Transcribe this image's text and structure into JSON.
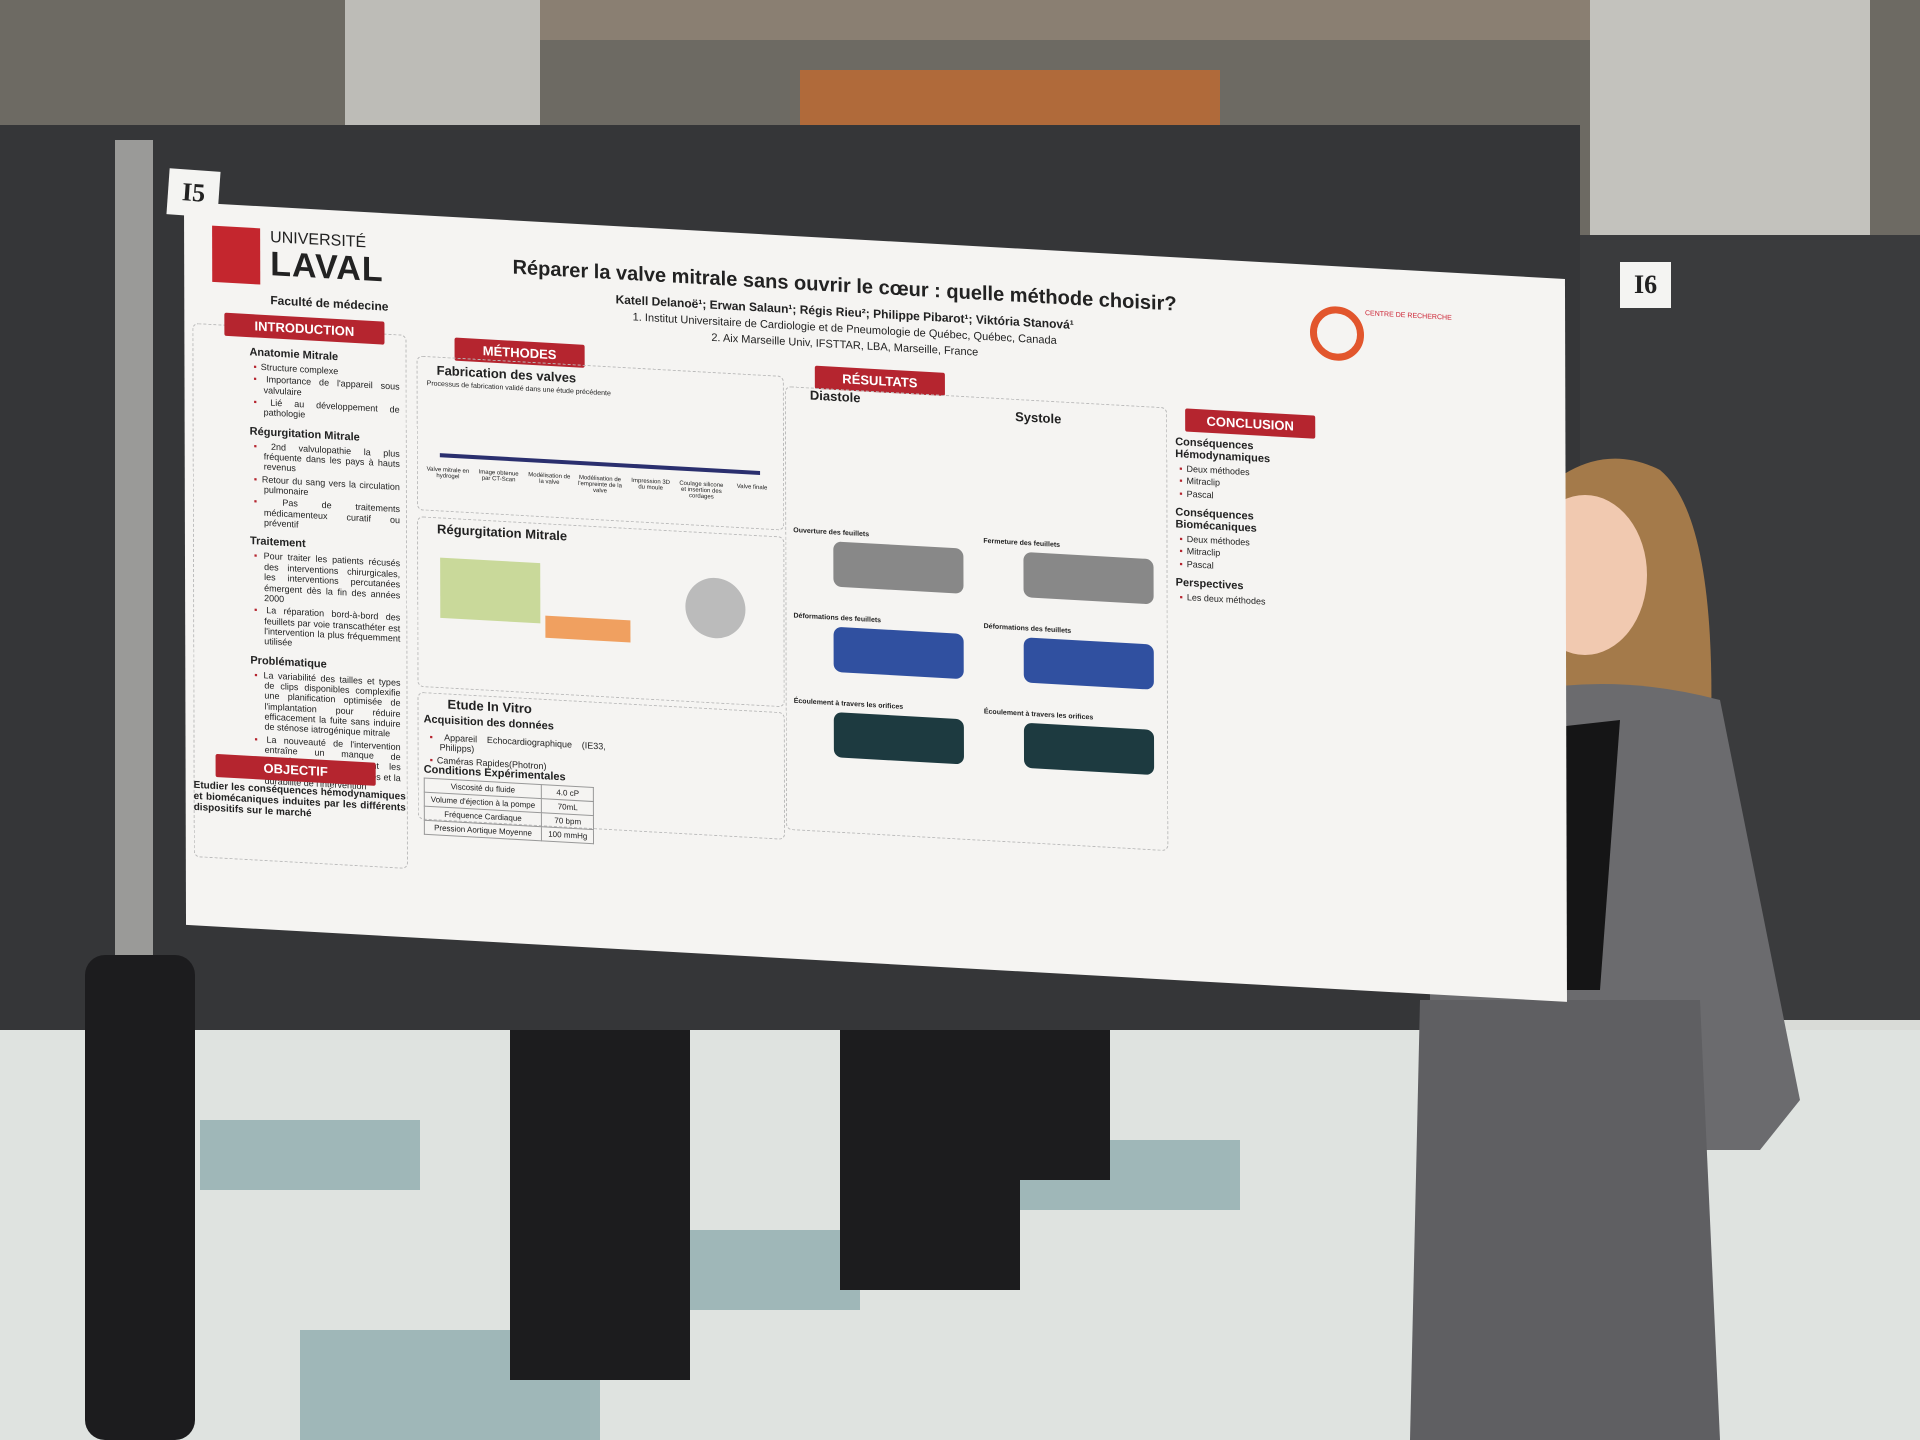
{
  "labels": {
    "left": "I5",
    "right": "I6"
  },
  "poster": {
    "university": "UNIVERSITÉ",
    "university_name": "LAVAL",
    "faculty": "Faculté de médecine",
    "title": "Réparer la valve mitrale sans ouvrir le cœur : quelle méthode choisir?",
    "authors": "Katell Delanoë¹; Erwan Salaun¹; Régis Rieu²; Philippe Pibarot¹; Viktória Stanová¹",
    "affiliations": [
      "1. Institut Universitaire de Cardiologie et de Pneumologie de Québec, Québec, Canada",
      "2. Aix Marseille Univ, IFSTTAR, LBA, Marseille, France"
    ],
    "centre": "CENTRE DE RECHERCHE",
    "introduction": {
      "heading": "INTRODUCTION",
      "parts": [
        {
          "heading": "Anatomie Mitrale",
          "bullets": [
            "Structure complexe",
            "Importance de l'appareil sous valvulaire",
            "Lié au développement de pathologie"
          ]
        },
        {
          "heading": "Régurgitation Mitrale",
          "bullets": [
            "2nd valvulopathie la plus fréquente dans les pays à hauts revenus",
            "Retour du sang vers la circulation pulmonaire",
            "Pas de traitements médicamenteux curatif ou préventif"
          ]
        },
        {
          "heading": "Traitement",
          "bullets": [
            "Pour traiter les patients récusés des interventions chirurgicales, les interventions percutanées émergent dès la fin des années 2000",
            "La réparation bord-à-bord des feuillets par voie transcathéter est l'intervention la plus fréquemment utilisée"
          ]
        },
        {
          "heading": "Problématique",
          "bullets": [
            "La variabilité des tailles et types de clips disponibles complexifie une planification optimisée de l'implantation pour réduire efficacement la fuite sans induire de sténose iatrogénique mitrale",
            "La nouveauté de l'intervention entraîne un manque de connaissances concernant les conséquences à long-termes et la durabilité de l'intervention"
          ]
        }
      ]
    },
    "objectif": {
      "heading": "OBJECTIF",
      "text": "Etudier les conséquences hémodynamiques et biomécaniques induites par les différents dispositifs sur le marché"
    },
    "methodes": {
      "heading": "MÉTHODES",
      "fabrication": "Fabrication des valves",
      "fabrication_note": "Processus de fabrication validé dans une étude précédente",
      "steps": [
        "Valve mitrale en hydrogel",
        "Image obtenue par CT-Scan",
        "Modélisation de la valve",
        "Modélisation de l'empreinte de la valve",
        "Impression 3D du moule",
        "Coulage silicone et insertion des cordages",
        "Valve finale"
      ],
      "regurgitation": "Régurgitation Mitrale",
      "invitro": "Etude In Vitro",
      "acquisition": "Acquisition des données",
      "devices": [
        "Appareil Echocardiographique (IE33, Philipps)",
        "Caméras Rapides(Photron)"
      ],
      "conditions": "Conditions Expérimentales",
      "table": [
        [
          "Viscosité du fluide",
          "4.0 cP"
        ],
        [
          "Volume d'éjection à la pompe",
          "70mL"
        ],
        [
          "Fréquence Cardiaque",
          "70 bpm"
        ],
        [
          "Pression Aortique Moyenne",
          "100 mmHg"
        ]
      ]
    },
    "resultats": {
      "heading": "RÉSULTATS",
      "diastole": "Diastole",
      "systole": "Systole",
      "panels": [
        "Ouverture des feuillets",
        "Fermeture des feuillets",
        "Déformations des feuillets",
        "Déformations des feuillets",
        "Écoulement à travers les orifices",
        "Écoulement à travers les orifices"
      ]
    },
    "conclusion": {
      "heading": "CONCLUSION",
      "parts": [
        {
          "heading": "Conséquences Hémodynamiques",
          "bullets": [
            "Deux méthodes",
            "Mitraclip",
            "Pascal"
          ]
        },
        {
          "heading": "Conséquences Biomécaniques",
          "bullets": [
            "Deux méthodes",
            "Mitraclip",
            "Pascal"
          ]
        },
        {
          "heading": "Perspectives",
          "bullets": [
            "Les deux méthodes"
          ]
        }
      ]
    }
  }
}
